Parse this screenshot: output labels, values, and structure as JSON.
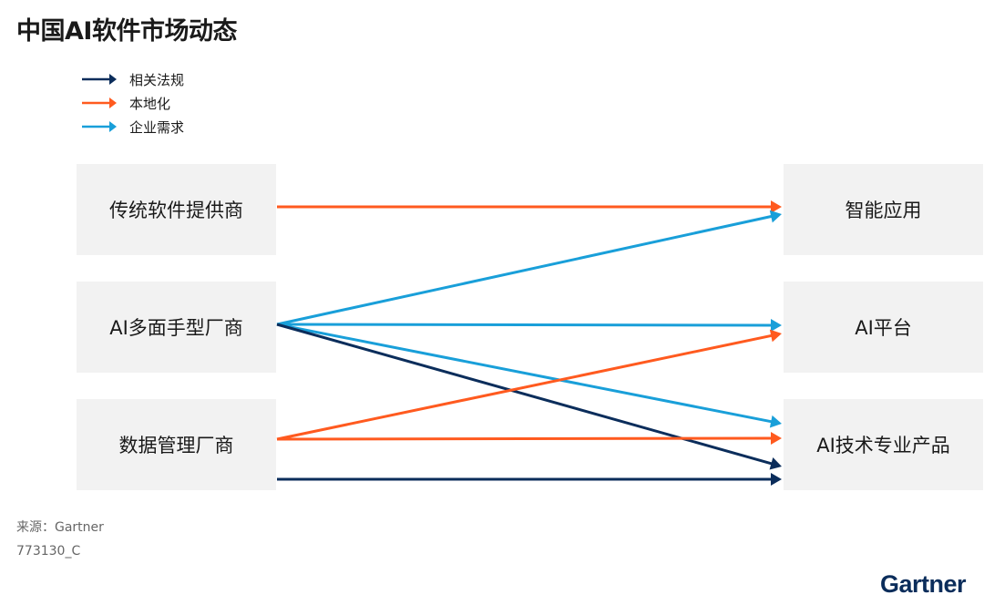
{
  "title": "中国AI软件市场动态",
  "colors": {
    "regulation": "#0b2d5b",
    "localization": "#ff5a1f",
    "demand": "#199fd9",
    "box": "#f2f2f2"
  },
  "legend": [
    {
      "key": "regulation",
      "label": "相关法规"
    },
    {
      "key": "localization",
      "label": "本地化"
    },
    {
      "key": "demand",
      "label": "企业需求"
    }
  ],
  "sources": [
    "传统软件提供商",
    "AI多面手型厂商",
    "数据管理厂商"
  ],
  "targets": [
    "智能应用",
    "AI平台",
    "AI技术专业产品"
  ],
  "links": [
    {
      "from": 0,
      "to": 0,
      "type": "localization"
    },
    {
      "from": 1,
      "to": 0,
      "type": "demand"
    },
    {
      "from": 1,
      "to": 1,
      "type": "demand"
    },
    {
      "from": 1,
      "to": 2,
      "type": "demand"
    },
    {
      "from": 1,
      "to": 2,
      "type": "regulation"
    },
    {
      "from": 2,
      "to": 1,
      "type": "localization"
    },
    {
      "from": 2,
      "to": 2,
      "type": "localization"
    },
    {
      "from": 2,
      "to": 2,
      "type": "regulation"
    }
  ],
  "footer": {
    "source": "来源：Gartner",
    "code": "773130_C"
  },
  "logo": "Gartner"
}
